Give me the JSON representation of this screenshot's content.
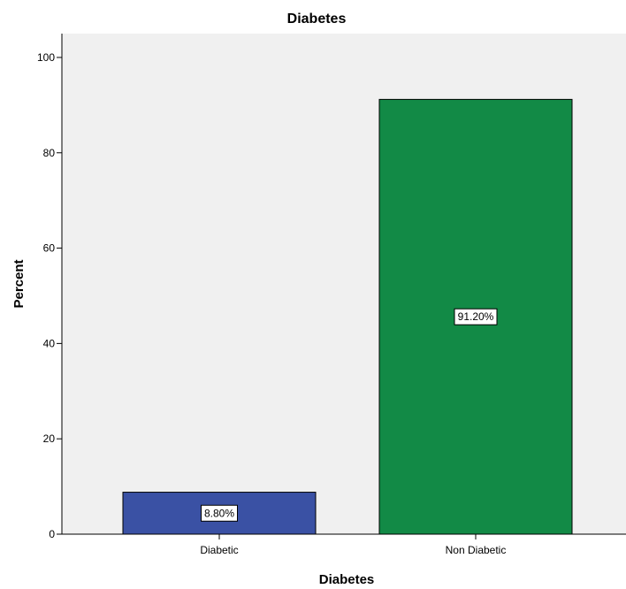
{
  "chart_data": {
    "type": "bar",
    "title": "Diabetes",
    "xlabel": "Diabetes",
    "ylabel": "Percent",
    "categories": [
      "Diabetic",
      "Non Diabetic"
    ],
    "values": [
      8.8,
      91.2
    ],
    "data_labels": [
      "8.80%",
      "91.20%"
    ],
    "bar_colors": [
      "#3a51a4",
      "#128a46"
    ],
    "ylim": [
      0,
      105
    ],
    "yticks": [
      0,
      20,
      40,
      60,
      80,
      100
    ],
    "ytick_labels": [
      "0",
      "20",
      "40",
      "60",
      "80",
      "100"
    ],
    "grid": false,
    "legend": "none",
    "plot_background": "#f0f0f0"
  }
}
